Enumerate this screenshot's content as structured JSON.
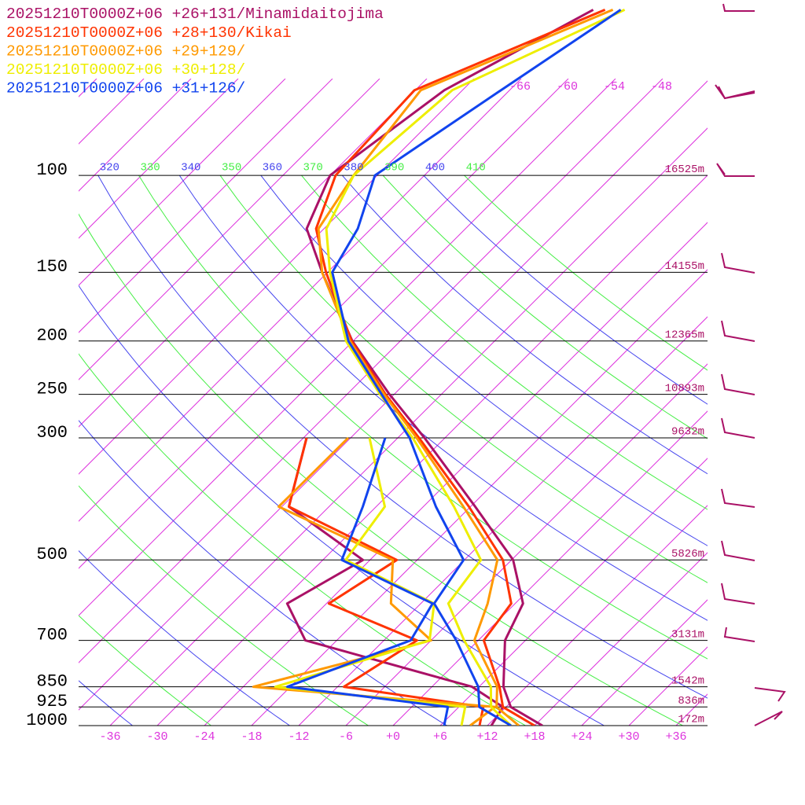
{
  "chart_data": {
    "type": "skewt",
    "xlim": [
      -40,
      40
    ],
    "ylim": [
      1000,
      48
    ],
    "xticks": [
      -36,
      -30,
      -24,
      -18,
      -12,
      -6,
      {
        "value": 0,
        "label": "+0"
      },
      {
        "value": 6,
        "label": "+6"
      },
      {
        "value": 12,
        "label": "+12"
      },
      {
        "value": 18,
        "label": "+18"
      },
      {
        "value": 24,
        "label": "+24"
      },
      {
        "value": 30,
        "label": "+30"
      },
      {
        "value": 36,
        "label": "+36"
      }
    ],
    "isotherm_labels": [
      -66,
      -60,
      -54,
      -48
    ],
    "theta_labels": [
      320,
      330,
      340,
      350,
      360,
      370,
      380,
      390,
      400,
      410
    ],
    "pressure_ticks": [
      100,
      150,
      200,
      250,
      300,
      500,
      700,
      850,
      925,
      1000
    ],
    "height_labels": [
      "16525m",
      "14155m",
      "12365m",
      "10893m",
      "9632m",
      "5826m",
      "3131m",
      "1542m",
      "836m",
      "172m"
    ],
    "levels": [
      1000,
      925,
      850,
      700,
      600,
      500,
      400,
      300,
      250,
      200,
      150,
      125,
      100,
      70,
      50
    ],
    "series": [
      {
        "name": "20251210T0000Z+06 +26+131/Minamidaitojima",
        "color": "#aa1166",
        "temperature": [
          19.0,
          12.6,
          9.1,
          3.4,
          1.0,
          -5.8,
          -17.4,
          -32.6,
          -42.6,
          -54.1,
          -66.7,
          -74.2,
          -78,
          -74.3,
          -65.6
        ],
        "dewpoint": [
          12.5,
          11.6,
          5.1,
          -22,
          -29,
          -24.9,
          -41.1,
          -47.6,
          null,
          null,
          null,
          null,
          null,
          null,
          null
        ]
      },
      {
        "name": "20251210T0000Z+06 +28+130/Kikai",
        "color": "#ff3300",
        "temperature": [
          18,
          11.6,
          8.6,
          0.7,
          -0.5,
          -7.1,
          -18.2,
          -33.3,
          -43.1,
          -54.2,
          -66.2,
          -73,
          -77.3,
          -78.1,
          -64.1
        ],
        "dewpoint": [
          11,
          9.1,
          -11.2,
          -7.8,
          -23.7,
          -20.6,
          -41.1,
          -47.6,
          null,
          null,
          null,
          null,
          null,
          null,
          null
        ]
      },
      {
        "name": "20251210T0000Z+06 +29+129/",
        "color": "#ff9900",
        "temperature": [
          16,
          10.8,
          8.3,
          -0.5,
          -3.5,
          -7.8,
          -18.9,
          -33.6,
          -43.3,
          -54.4,
          -66.7,
          -72.7,
          -75,
          -77.3,
          -63.1
        ],
        "dewpoint": [
          9.8,
          10.6,
          -22.7,
          -6,
          -15.8,
          -21.1,
          -42.4,
          -42.3,
          null,
          null,
          null,
          null,
          null,
          null,
          null
        ]
      },
      {
        "name": "20251210T0000Z+06 +30+128/",
        "color": "#eeee00",
        "temperature": [
          15,
          10.1,
          7.5,
          -1.8,
          -8.5,
          -9.9,
          -20.1,
          -34.1,
          -43.8,
          -54.9,
          -65.7,
          -71.7,
          -75,
          -73.3,
          -61.6
        ],
        "dewpoint": [
          8.7,
          6.8,
          -19.9,
          -6.2,
          -10.3,
          -27.1,
          -28.9,
          -39.6,
          null,
          null,
          null,
          null,
          null,
          null,
          null
        ]
      },
      {
        "name": "20251210T0000Z+06 +31+126/",
        "color": "#1144ee",
        "temperature": [
          15,
          8.6,
          5.9,
          -2.8,
          -10.3,
          -12.1,
          -22.4,
          -34.5,
          -43.6,
          -54.6,
          -65.4,
          -67.7,
          -72.3,
          -67.1,
          -62.1
        ],
        "dewpoint": [
          6.5,
          4.6,
          -18.4,
          -8.6,
          -10.5,
          -27.6,
          -31.7,
          -37.6,
          null,
          null,
          null,
          null,
          null,
          null,
          null
        ]
      }
    ]
  }
}
